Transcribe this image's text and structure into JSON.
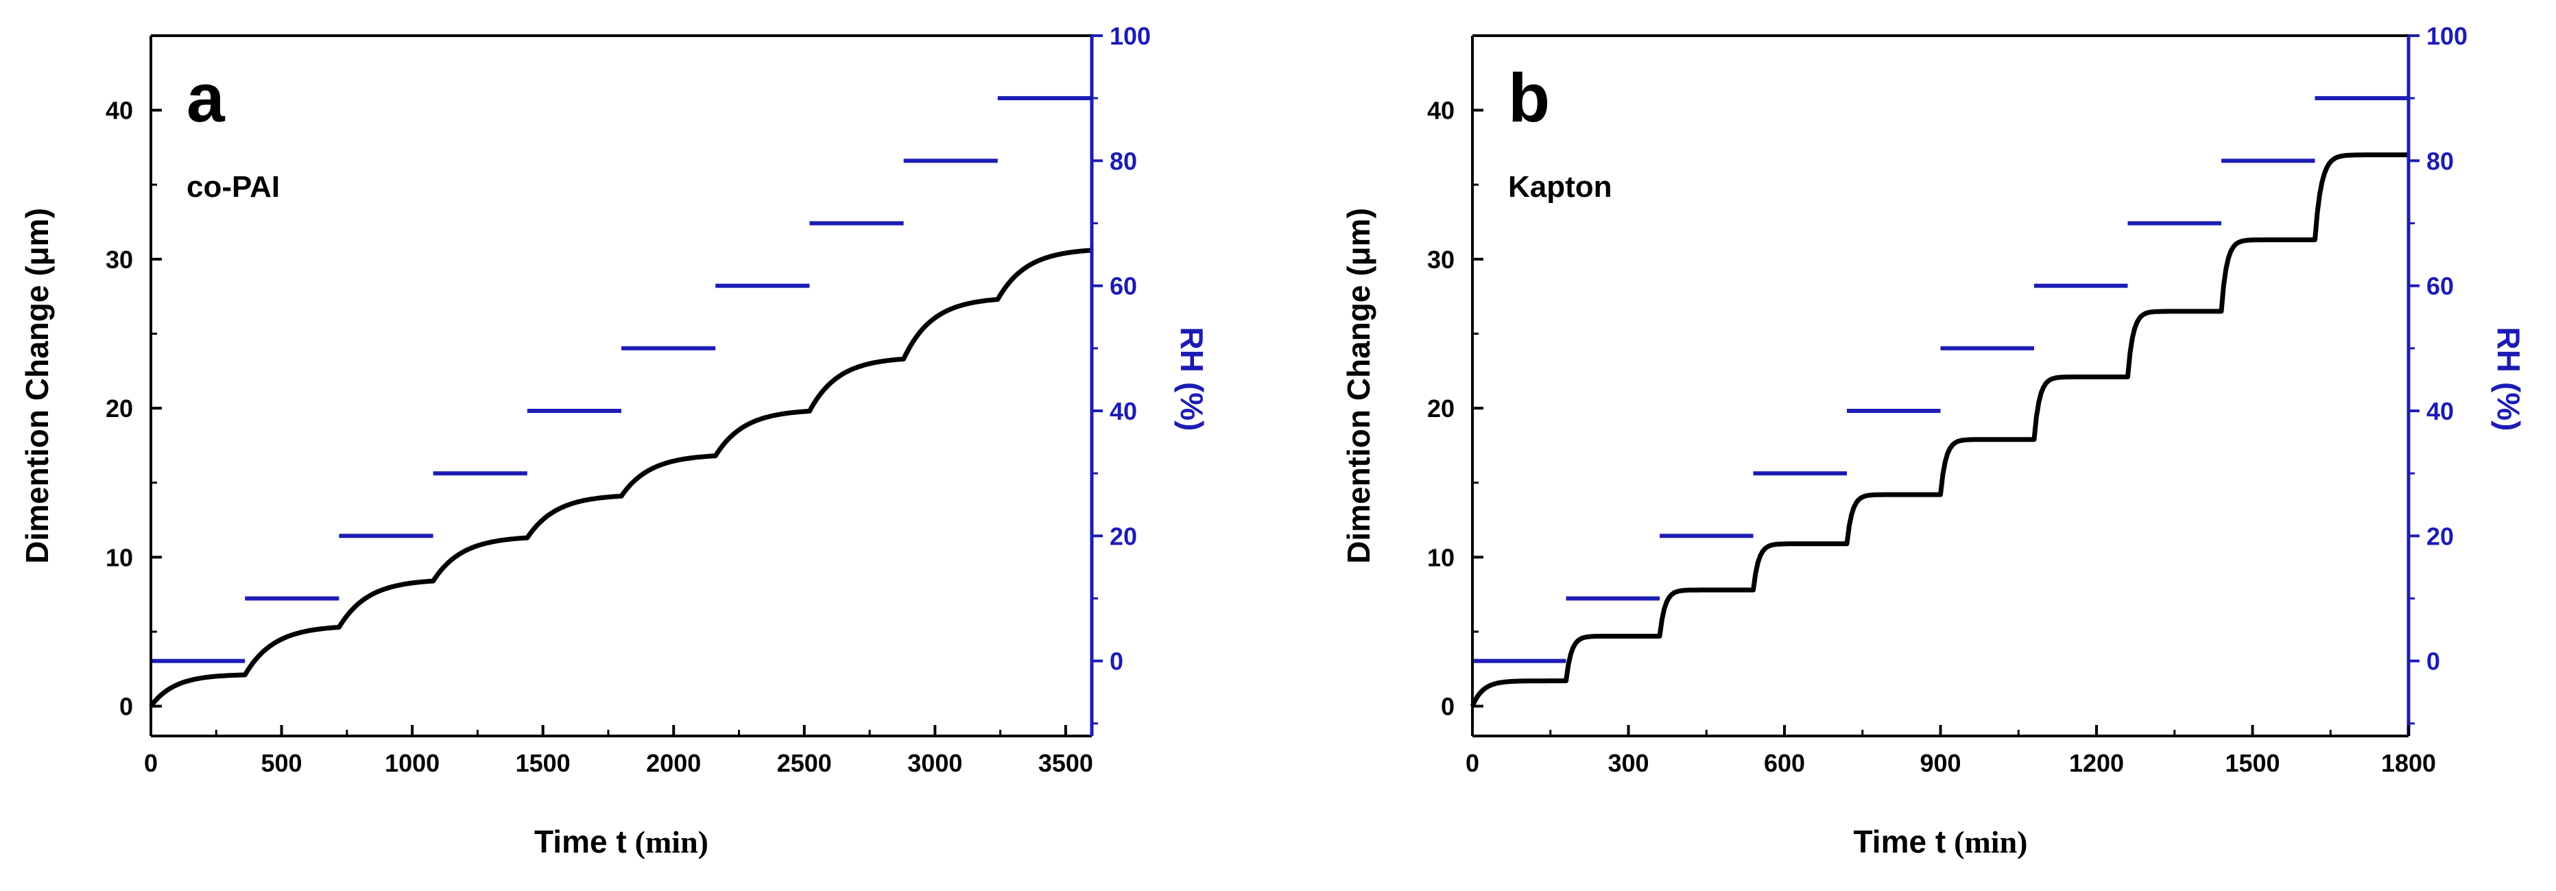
{
  "colors": {
    "axis_left": "#000000",
    "axis_right": "#1c1cb4",
    "curve": "#000000",
    "rh_steps": "#1c1cb4"
  },
  "chart_data": [
    {
      "type": "line",
      "panel_label": "a",
      "annotation": "co-PAI",
      "xlabel_main": "Time t",
      "xlabel_unit": "(min)",
      "ylabel_left": "Dimention Change (μm)",
      "ylabel_right_main": "RH",
      "ylabel_right_unit": "(%)",
      "xlim": [
        0,
        3600
      ],
      "xticks": [
        0,
        500,
        1000,
        1500,
        2000,
        2500,
        3000,
        3500
      ],
      "ylim_left": [
        -2,
        45
      ],
      "yticks_left": [
        0,
        10,
        20,
        30,
        40
      ],
      "ylim_right": [
        -12,
        100
      ],
      "yticks_right": [
        0,
        20,
        40,
        60,
        80,
        100
      ],
      "series": [
        {
          "name": "Dimention Change",
          "axis": "left",
          "steps": [
            {
              "t0": 0,
              "t1": 360,
              "y0": 0.0,
              "y1": 2.1,
              "k": 90
            },
            {
              "t0": 360,
              "t1": 720,
              "y0": 2.1,
              "y1": 5.3,
              "k": 110
            },
            {
              "t0": 720,
              "t1": 1080,
              "y0": 5.3,
              "y1": 8.4,
              "k": 110
            },
            {
              "t0": 1080,
              "t1": 1440,
              "y0": 8.4,
              "y1": 11.3,
              "k": 110
            },
            {
              "t0": 1440,
              "t1": 1800,
              "y0": 11.3,
              "y1": 14.1,
              "k": 110
            },
            {
              "t0": 1800,
              "t1": 2160,
              "y0": 14.1,
              "y1": 16.8,
              "k": 110
            },
            {
              "t0": 2160,
              "t1": 2520,
              "y0": 16.8,
              "y1": 19.8,
              "k": 110
            },
            {
              "t0": 2520,
              "t1": 2880,
              "y0": 19.8,
              "y1": 23.3,
              "k": 110
            },
            {
              "t0": 2880,
              "t1": 3240,
              "y0": 23.3,
              "y1": 27.3,
              "k": 110
            },
            {
              "t0": 3240,
              "t1": 3600,
              "y0": 27.3,
              "y1": 30.6,
              "k": 110
            }
          ]
        },
        {
          "name": "RH",
          "axis": "right",
          "segments": [
            {
              "t0": 0,
              "t1": 360,
              "rh": 0
            },
            {
              "t0": 360,
              "t1": 720,
              "rh": 10
            },
            {
              "t0": 720,
              "t1": 1080,
              "rh": 20
            },
            {
              "t0": 1080,
              "t1": 1440,
              "rh": 30
            },
            {
              "t0": 1440,
              "t1": 1800,
              "rh": 40
            },
            {
              "t0": 1800,
              "t1": 2160,
              "rh": 50
            },
            {
              "t0": 2160,
              "t1": 2520,
              "rh": 60
            },
            {
              "t0": 2520,
              "t1": 2880,
              "rh": 70
            },
            {
              "t0": 2880,
              "t1": 3240,
              "rh": 80
            },
            {
              "t0": 3240,
              "t1": 3600,
              "rh": 90
            }
          ]
        }
      ]
    },
    {
      "type": "line",
      "panel_label": "b",
      "annotation": "Kapton",
      "xlabel_main": "Time t",
      "xlabel_unit": "(min)",
      "ylabel_left": "Dimention Change (μm)",
      "ylabel_right_main": "RH",
      "ylabel_right_unit": "(%)",
      "xlim": [
        0,
        1800
      ],
      "xticks": [
        0,
        300,
        600,
        900,
        1200,
        1500,
        1800
      ],
      "ylim_left": [
        -2,
        45
      ],
      "yticks_left": [
        0,
        10,
        20,
        30,
        40
      ],
      "ylim_right": [
        -12,
        100
      ],
      "yticks_right": [
        0,
        20,
        40,
        60,
        80,
        100
      ],
      "series": [
        {
          "name": "Dimention Change",
          "axis": "left",
          "steps": [
            {
              "t0": 0,
              "t1": 180,
              "y0": 0.0,
              "y1": 1.7,
              "k": 20
            },
            {
              "t0": 180,
              "t1": 360,
              "y0": 1.7,
              "y1": 4.7,
              "k": 10
            },
            {
              "t0": 360,
              "t1": 540,
              "y0": 4.7,
              "y1": 7.8,
              "k": 10
            },
            {
              "t0": 540,
              "t1": 720,
              "y0": 7.8,
              "y1": 10.9,
              "k": 10
            },
            {
              "t0": 720,
              "t1": 900,
              "y0": 10.9,
              "y1": 14.2,
              "k": 10
            },
            {
              "t0": 900,
              "t1": 1080,
              "y0": 14.2,
              "y1": 17.9,
              "k": 10
            },
            {
              "t0": 1080,
              "t1": 1260,
              "y0": 17.9,
              "y1": 22.1,
              "k": 10
            },
            {
              "t0": 1260,
              "t1": 1440,
              "y0": 22.1,
              "y1": 26.5,
              "k": 10
            },
            {
              "t0": 1440,
              "t1": 1620,
              "y0": 26.5,
              "y1": 31.3,
              "k": 10
            },
            {
              "t0": 1620,
              "t1": 1800,
              "y0": 31.3,
              "y1": 37.0,
              "k": 12
            }
          ]
        },
        {
          "name": "RH",
          "axis": "right",
          "segments": [
            {
              "t0": 0,
              "t1": 180,
              "rh": 0
            },
            {
              "t0": 180,
              "t1": 360,
              "rh": 10
            },
            {
              "t0": 360,
              "t1": 540,
              "rh": 20
            },
            {
              "t0": 540,
              "t1": 720,
              "rh": 30
            },
            {
              "t0": 720,
              "t1": 900,
              "rh": 40
            },
            {
              "t0": 900,
              "t1": 1080,
              "rh": 50
            },
            {
              "t0": 1080,
              "t1": 1260,
              "rh": 60
            },
            {
              "t0": 1260,
              "t1": 1440,
              "rh": 70
            },
            {
              "t0": 1440,
              "t1": 1620,
              "rh": 80
            },
            {
              "t0": 1620,
              "t1": 1800,
              "rh": 90
            }
          ]
        }
      ]
    }
  ]
}
